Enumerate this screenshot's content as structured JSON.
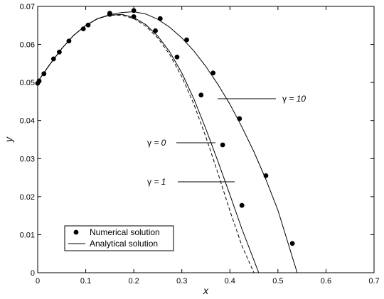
{
  "chart_data": {
    "type": "line",
    "xlabel": "x",
    "ylabel": "y",
    "xlim": [
      0,
      0.7
    ],
    "ylim": [
      0,
      0.07
    ],
    "xticks": [
      "0",
      "0.1",
      "0.2",
      "0.3",
      "0.4",
      "0.5",
      "0.6",
      "0.7"
    ],
    "yticks": [
      "0",
      "0.01",
      "0.02",
      "0.03",
      "0.04",
      "0.05",
      "0.06",
      "0.07"
    ],
    "grid": false,
    "legend_position": "bottom-left",
    "legend": [
      {
        "label": "Numerical solution",
        "marker": "circle"
      },
      {
        "label": "Analytical solution",
        "marker": "line"
      }
    ],
    "annotations": [
      {
        "symbol": "γ",
        "rest": " = 10",
        "target_series": 2
      },
      {
        "symbol": "γ",
        "rest": " = 0",
        "target_series": 0
      },
      {
        "symbol": "γ",
        "rest": " = 1",
        "target_series": 1
      }
    ],
    "series": [
      {
        "style": "dashed",
        "x": [
          0,
          0.025,
          0.05,
          0.075,
          0.1,
          0.125,
          0.15,
          0.175,
          0.2,
          0.225,
          0.25,
          0.275,
          0.3,
          0.325,
          0.35,
          0.375,
          0.4,
          0.425,
          0.45
        ],
        "y": [
          0.0502,
          0.0547,
          0.0589,
          0.0624,
          0.065,
          0.0668,
          0.0677,
          0.0677,
          0.0668,
          0.0648,
          0.0617,
          0.0573,
          0.0515,
          0.0443,
          0.0357,
          0.0262,
          0.0163,
          0.0071,
          0.0
        ]
      },
      {
        "style": "solid",
        "x": [
          0,
          0.025,
          0.05,
          0.075,
          0.1,
          0.125,
          0.15,
          0.175,
          0.2,
          0.225,
          0.25,
          0.275,
          0.3,
          0.325,
          0.35,
          0.375,
          0.4,
          0.425,
          0.46
        ],
        "y": [
          0.0502,
          0.0547,
          0.0589,
          0.0624,
          0.065,
          0.0668,
          0.0677,
          0.0679,
          0.0671,
          0.0652,
          0.0622,
          0.058,
          0.0525,
          0.0457,
          0.0378,
          0.0293,
          0.0205,
          0.0115,
          0.0
        ]
      },
      {
        "style": "solid",
        "x": [
          0,
          0.025,
          0.05,
          0.075,
          0.1,
          0.125,
          0.15,
          0.175,
          0.2,
          0.225,
          0.25,
          0.275,
          0.3,
          0.325,
          0.35,
          0.375,
          0.4,
          0.425,
          0.45,
          0.475,
          0.5,
          0.54
        ],
        "y": [
          0.0502,
          0.0547,
          0.0589,
          0.0624,
          0.065,
          0.0668,
          0.0678,
          0.0684,
          0.0686,
          0.068,
          0.0666,
          0.0645,
          0.0617,
          0.0583,
          0.0542,
          0.0495,
          0.0443,
          0.0383,
          0.0318,
          0.0245,
          0.0164,
          0.0
        ]
      },
      {
        "style": "markers",
        "x": [
          0,
          0.003,
          0.013,
          0.033,
          0.045,
          0.065,
          0.095,
          0.105,
          0.15,
          0.2,
          0.245,
          0.29,
          0.34,
          0.385,
          0.425
        ],
        "y": [
          0.0498,
          0.0504,
          0.0523,
          0.0562,
          0.058,
          0.0609,
          0.0641,
          0.0651,
          0.0679,
          0.0673,
          0.0636,
          0.0567,
          0.0467,
          0.0336,
          0.0177
        ]
      },
      {
        "style": "markers",
        "x": [
          0.15,
          0.2,
          0.255,
          0.31,
          0.365,
          0.42,
          0.475,
          0.53
        ],
        "y": [
          0.0682,
          0.0689,
          0.0668,
          0.0612,
          0.0525,
          0.0405,
          0.0255,
          0.0077
        ]
      }
    ]
  }
}
